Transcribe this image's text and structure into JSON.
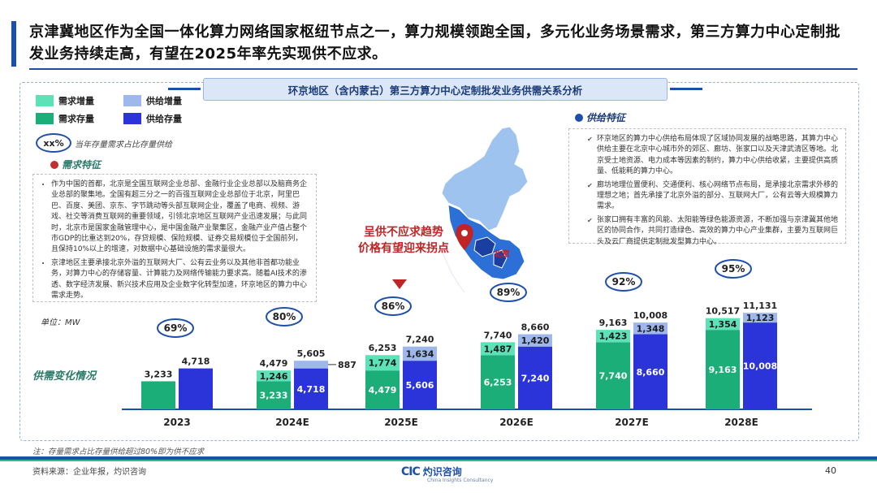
{
  "title": "京津冀地区作为全国一体化算力网络国家枢纽节点之一，算力规模领跑全国，多元化业务场景需求，第三方算力中心定制批发业务持续走高，有望在2025年率先实现供不应求。",
  "banner": "环京地区（含内蒙古）第三方算力中心定制批发业务供需关系分析",
  "legend": [
    {
      "label": "需求增量",
      "color": "#5de2b8"
    },
    {
      "label": "供给增量",
      "color": "#9fb8ec"
    },
    {
      "label": "需求存量",
      "color": "#1cae78"
    },
    {
      "label": "供给存量",
      "color": "#2a34d8"
    }
  ],
  "pct_key": {
    "symbol": "xx%",
    "desc": "当年存量需求占比存量供给"
  },
  "demand_box": {
    "title": "需求特征",
    "items": [
      "作为中国的首都，北京是全国互联网企业总部、金融行业企业总部以及脑商务企业总部的聚集地。全国有超三分之一的百强互联网企业总部位于北京，阿里巴巴、百度、美团、京东、字节跳动等头部互联网企业，覆盖了电商、视频、游戏、社交等消费互联网的重要领域，引领北京地区互联网产业迅速发展；与此同时，北京市是国家金融管理中心，是中国金融产业聚集区，金融产业产值占整个市GDP的比重达到20%，存贷规模、保险规模、证券交易规模位于全国前列，且保持10%以上的增速，对数据中心基础设施的需求量很大。",
      "京津地区主要承接北京外溢的互联网大厂、公有云业务以及其他非首都功能业务，对算力中心的存储容量、计算能力及网络传输能力要求高。随着AI技术的渗透、数字经济发展、新兴技术应用及企业数字化转型加速，环京地区的算力中心需求走势。"
    ]
  },
  "supply_box": {
    "title": "供给特征",
    "items": [
      "环京地区的算力中心供给布局体现了区域协同发展的战略思路，其算力中心供给主要在北京中心城市外的郊区、廊坊、张家口以及天津武清区等地。北京受土地资源、电力成本等因素的制约，算力中心供给收紧，主要提供高质量、低能耗的算力中心。",
      "廊坊地理位置便利、交通便利、核心网络节点布局，是承接北京需求外移的理想之地；首先承接了北京外溢的部分、互联网大厂，公有云等大规模算力需求。",
      "张家口拥有丰富的风能、太阳能等绿色能源资源，不断加强与京津冀其他地区的协同合作，共同打造绿色、高效的算力中心产业集群，主要为互联网巨头及云厂商提供定制批发型算力中心。"
    ]
  },
  "callout": {
    "line1": "呈供不应求趋势",
    "line2": "价格有望迎来拐点"
  },
  "map_label": "北京",
  "unit": "单位：MW",
  "sub_title": "供需变化情况",
  "chart_data": {
    "type": "bar",
    "unit": "MW",
    "categories": [
      "2023",
      "2024E",
      "2025E",
      "2026E",
      "2027E",
      "2028E"
    ],
    "series": [
      {
        "name": "需求存量",
        "values": [
          null,
          3233,
          4479,
          6253,
          7740,
          9163
        ]
      },
      {
        "name": "需求增量",
        "values": [
          null,
          1246,
          1774,
          1487,
          1423,
          1354
        ]
      },
      {
        "name": "供给存量",
        "values": [
          null,
          4718,
          5606,
          7240,
          8660,
          10008
        ]
      },
      {
        "name": "供给增量",
        "values": [
          null,
          887,
          1634,
          1420,
          1348,
          1123
        ]
      }
    ],
    "demand_2023": 3233,
    "supply_2023": 4718,
    "demand_totals": [
      3233,
      4479,
      6253,
      7740,
      9163,
      10517
    ],
    "supply_totals": [
      4718,
      5605,
      7240,
      8660,
      10008,
      11131
    ],
    "ratio_labels": [
      "69%",
      "80%",
      "86%",
      "89%",
      "92%",
      "95%"
    ],
    "colors": {
      "demand_stock": "#1cae78",
      "demand_inc": "#5de2b8",
      "supply_stock": "#2a34d8",
      "supply_inc": "#9fb8ec"
    }
  },
  "note": "注：存量需求占比存量供给超过80%即为供不应求",
  "source": "资料来源：企业年报，灼识咨询",
  "logo": {
    "mark": "CIC",
    "cn": "灼识咨询",
    "en": "China Insights Consultancy"
  },
  "page_number": "40"
}
